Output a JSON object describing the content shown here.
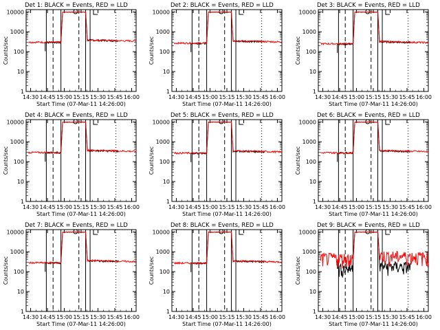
{
  "chart_data": {
    "type": "line",
    "panels": [
      {
        "title": "Det 1: BLACK = Events, RED = LLD",
        "xlabel": "Start Time (07-Mar-11 14:26:00)",
        "ylabel": "Counts/sec",
        "baseline": 300,
        "noisy": false
      },
      {
        "title": "Det 2: BLACK = Events, RED = LLD",
        "xlabel": "Start Time (07-Mar-11 14:26:00)",
        "ylabel": "Counts/sec",
        "baseline": 270,
        "noisy": false
      },
      {
        "title": "Det 3: BLACK = Events, RED = LLD",
        "xlabel": "Start Time (07-Mar-11 14:26:00)",
        "ylabel": "Counts/sec",
        "baseline": 250,
        "noisy": false
      },
      {
        "title": "Det 4: BLACK = Events, RED = LLD",
        "xlabel": "Start Time (07-Mar-11 14:26:00)",
        "ylabel": "Counts/sec",
        "baseline": 290,
        "noisy": false
      },
      {
        "title": "Det 5: BLACK = Events, RED = LLD",
        "xlabel": "Start Time (07-Mar-11 14:26:00)",
        "ylabel": "Counts/sec",
        "baseline": 270,
        "noisy": false
      },
      {
        "title": "Det 6: BLACK = Events, RED = LLD",
        "xlabel": "Start Time (07-Mar-11 14:26:00)",
        "ylabel": "Counts/sec",
        "baseline": 280,
        "noisy": false
      },
      {
        "title": "Det 7: BLACK = Events, RED = LLD",
        "xlabel": "Start Time (07-Mar-11 14:26:00)",
        "ylabel": "Counts/sec",
        "baseline": 280,
        "noisy": false
      },
      {
        "title": "Det 8: BLACK = Events, RED = LLD",
        "xlabel": "Start Time (07-Mar-11 14:26:00)",
        "ylabel": "Counts/sec",
        "baseline": 270,
        "noisy": false
      },
      {
        "title": "Det 9: BLACK = Events, RED = LLD",
        "xlabel": "Start Time (07-Mar-11 14:26:00)",
        "ylabel": "Counts/sec",
        "baseline": 400,
        "noisy": true
      }
    ],
    "xticks": [
      "14:30",
      "14:45",
      "15:00",
      "15:15",
      "15:30",
      "15:45",
      "16:00"
    ],
    "xtick_minutes": [
      4,
      19,
      34,
      49,
      64,
      79,
      94
    ],
    "xlim_minutes": [
      0,
      98
    ],
    "yticks": [
      "1",
      "10",
      "100",
      "1000",
      "10000"
    ],
    "ylim": [
      1,
      13000
    ],
    "yscale": "log",
    "series": [
      {
        "name": "Events",
        "color": "#000000"
      },
      {
        "name": "LLD",
        "color": "#ff0000"
      }
    ],
    "saa_level": 10000,
    "peak_window_minutes": [
      31,
      53
    ],
    "solid_vlines_minutes": [
      18,
      31,
      53,
      57
    ],
    "dashed_vlines_minutes": [
      24,
      47
    ],
    "dotted_vlines_minutes": [
      80
    ],
    "markers": [
      {
        "type": "circle",
        "minute": 44
      },
      {
        "type": "bracket",
        "minute": 60
      }
    ]
  }
}
